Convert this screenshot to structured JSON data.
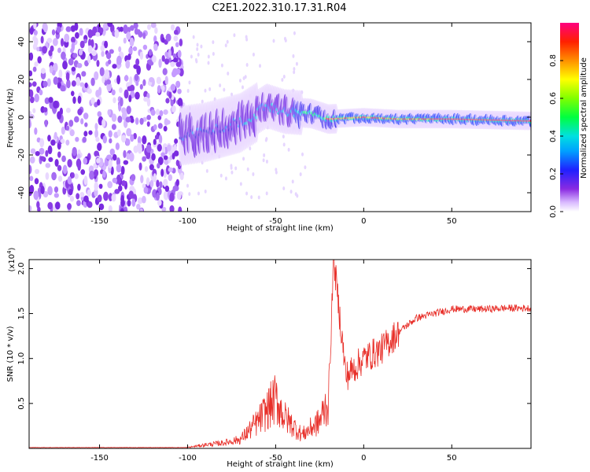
{
  "title": "C2E1.2022.310.17.31.R04",
  "chart_data": [
    {
      "type": "heatmap",
      "xlabel": "Height of straight line (km)",
      "ylabel": "Frequency (Hz)",
      "xlim": [
        -190,
        95
      ],
      "ylim": [
        -50,
        50
      ],
      "x_ticks": [
        -150,
        -100,
        -50,
        0,
        50
      ],
      "y_ticks": [
        -40,
        -20,
        0,
        20,
        40
      ],
      "colorbar": {
        "label": "Normalized spectral amplitude",
        "range": [
          0.0,
          1.0
        ],
        "ticks": [
          "0.0",
          "0.2",
          "0.4",
          "0.6",
          "0.8"
        ]
      },
      "band_center_freq": [
        {
          "x": -105,
          "y": -10
        },
        {
          "x": -90,
          "y": -8
        },
        {
          "x": -70,
          "y": -3
        },
        {
          "x": -55,
          "y": 6
        },
        {
          "x": -45,
          "y": 3
        },
        {
          "x": -30,
          "y": 2
        },
        {
          "x": -20,
          "y": -1
        },
        {
          "x": 0,
          "y": 0
        },
        {
          "x": 20,
          "y": -1
        },
        {
          "x": 50,
          "y": -1
        },
        {
          "x": 95,
          "y": -2
        }
      ]
    },
    {
      "type": "line",
      "xlabel": "Height of straight line (km)",
      "ylabel": "SNR (10 * v/v)",
      "y_multiplier": "(x10^4)",
      "xlim": [
        -190,
        95
      ],
      "ylim": [
        0,
        2.1
      ],
      "x_ticks": [
        -150,
        -100,
        -50,
        0,
        50
      ],
      "y_ticks": [
        "0.5",
        "1.0",
        "1.5",
        "2.0"
      ],
      "series_color": "#e8302a",
      "points": [
        {
          "x": -190,
          "y": 0.01
        },
        {
          "x": -100,
          "y": 0.01
        },
        {
          "x": -90,
          "y": 0.04
        },
        {
          "x": -80,
          "y": 0.06
        },
        {
          "x": -70,
          "y": 0.1
        },
        {
          "x": -60,
          "y": 0.3
        },
        {
          "x": -50,
          "y": 0.55
        },
        {
          "x": -45,
          "y": 0.35
        },
        {
          "x": -35,
          "y": 0.15
        },
        {
          "x": -25,
          "y": 0.3
        },
        {
          "x": -20,
          "y": 0.55
        },
        {
          "x": -17,
          "y": 2.1
        },
        {
          "x": -10,
          "y": 0.8
        },
        {
          "x": 0,
          "y": 1.0
        },
        {
          "x": 10,
          "y": 1.1
        },
        {
          "x": 20,
          "y": 1.3
        },
        {
          "x": 30,
          "y": 1.45
        },
        {
          "x": 40,
          "y": 1.5
        },
        {
          "x": 50,
          "y": 1.55
        },
        {
          "x": 60,
          "y": 1.55
        },
        {
          "x": 70,
          "y": 1.55
        },
        {
          "x": 80,
          "y": 1.56
        },
        {
          "x": 90,
          "y": 1.56
        }
      ]
    }
  ],
  "colors": {
    "line": "#e8302a",
    "axis": "#000000"
  }
}
